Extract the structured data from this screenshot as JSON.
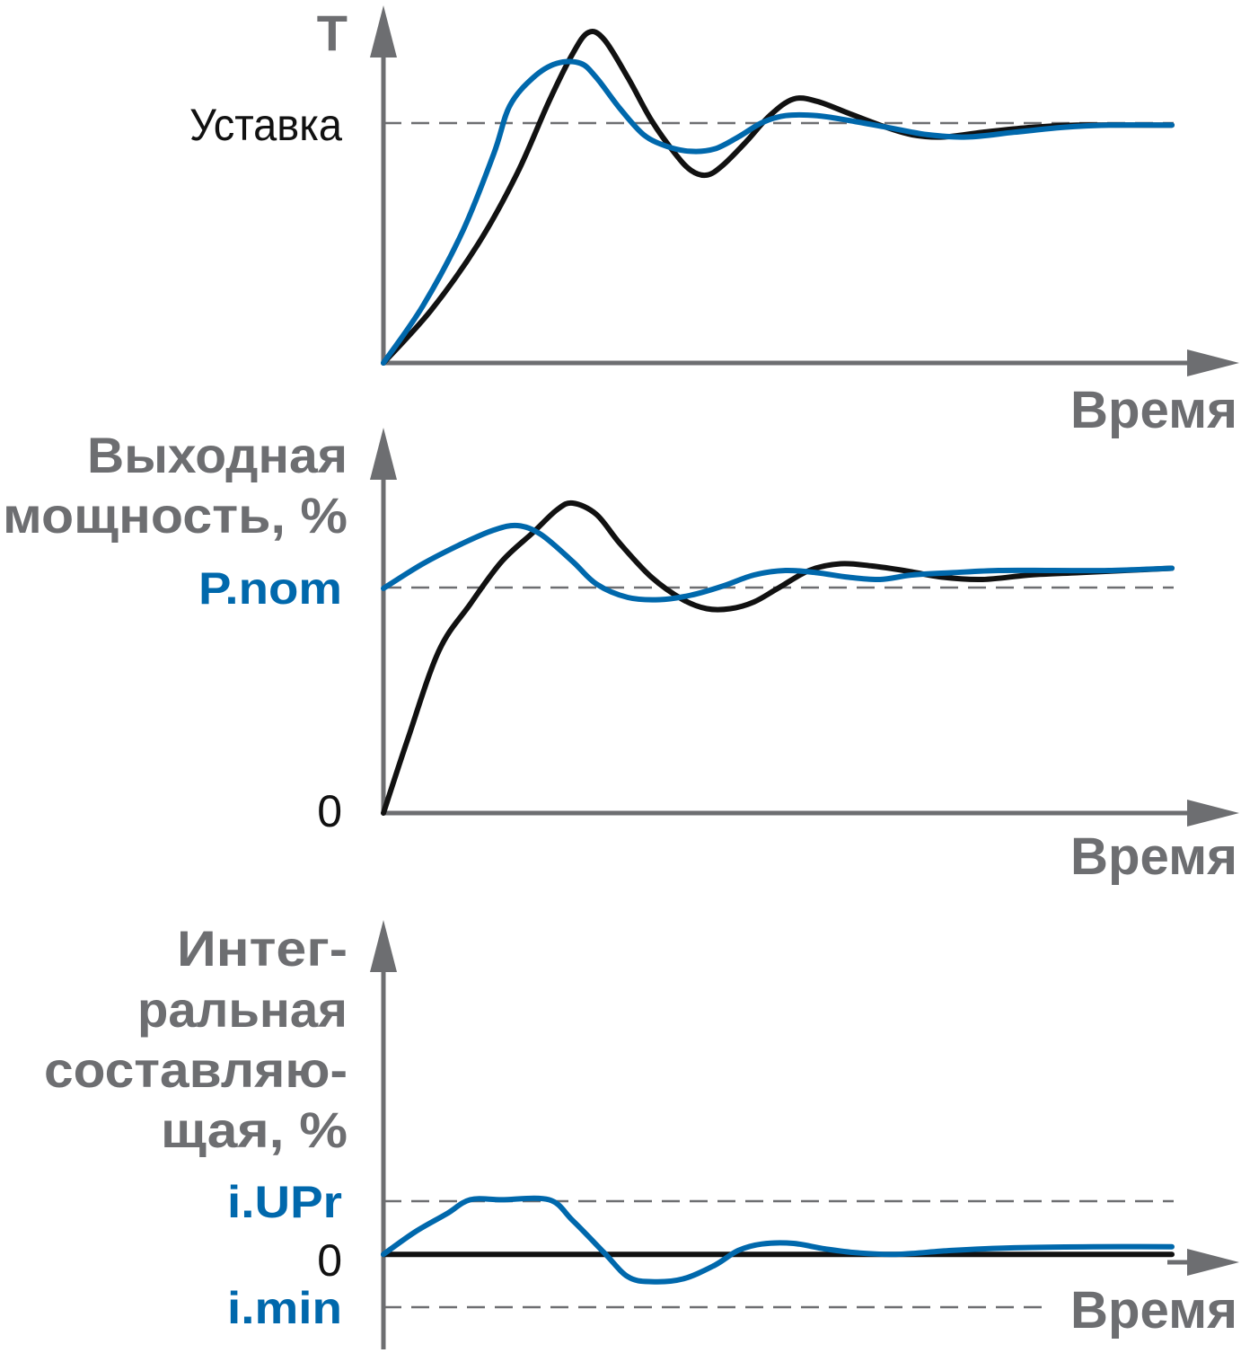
{
  "colors": {
    "axis": "#6d6e71",
    "series_black": "#111111",
    "series_blue": "#0068ac"
  },
  "labels": {
    "panel1_y_axis": "T",
    "panel1_setpoint": "Уставка",
    "panel1_x_axis": "Время",
    "panel2_y_axis_line1": "Выходная",
    "panel2_y_axis_line2": "мощность, %",
    "panel2_pnom": "P.nom",
    "panel2_zero": "0",
    "panel2_x_axis": "Время",
    "panel3_y_axis_line1": "Интег-",
    "panel3_y_axis_line2": "ральная",
    "panel3_y_axis_line3": "составляю-",
    "panel3_y_axis_line4": "щая, %",
    "panel3_iupr": "i.UPr",
    "panel3_zero": "0",
    "panel3_imin": "i.min",
    "panel3_x_axis": "Время"
  },
  "chart_data": [
    {
      "type": "line",
      "title": "",
      "ylabel": "T",
      "xlabel": "Время",
      "xlim": [
        0,
        100
      ],
      "ylim": [
        0,
        1.36
      ],
      "reference_lines": [
        {
          "label": "Уставка",
          "y": 1.0
        }
      ],
      "series": [
        {
          "color": "#111111",
          "points": [
            [
              0,
              0
            ],
            [
              6,
              0.22
            ],
            [
              12,
              0.5
            ],
            [
              17,
              0.8
            ],
            [
              21,
              1.1
            ],
            [
              24,
              1.3
            ],
            [
              26,
              1.39
            ],
            [
              28,
              1.36
            ],
            [
              31,
              1.2
            ],
            [
              34,
              1.02
            ],
            [
              37,
              0.88
            ],
            [
              39,
              0.81
            ],
            [
              41,
              0.79
            ],
            [
              43,
              0.83
            ],
            [
              46,
              0.93
            ],
            [
              49,
              1.04
            ],
            [
              52,
              1.11
            ],
            [
              55,
              1.1
            ],
            [
              59,
              1.05
            ],
            [
              63,
              1.0
            ],
            [
              67,
              0.96
            ],
            [
              71,
              0.95
            ],
            [
              76,
              0.97
            ],
            [
              82,
              0.99
            ],
            [
              88,
              1.0
            ],
            [
              100,
              1.0
            ]
          ]
        },
        {
          "color": "#0068ac",
          "points": [
            [
              0,
              0
            ],
            [
              5,
              0.24
            ],
            [
              10,
              0.55
            ],
            [
              14,
              0.88
            ],
            [
              16,
              1.08
            ],
            [
              19,
              1.2
            ],
            [
              22,
              1.26
            ],
            [
              25,
              1.26
            ],
            [
              27,
              1.2
            ],
            [
              30,
              1.07
            ],
            [
              33,
              0.96
            ],
            [
              36,
              0.91
            ],
            [
              39,
              0.89
            ],
            [
              42,
              0.9
            ],
            [
              45,
              0.95
            ],
            [
              48,
              1.01
            ],
            [
              51,
              1.04
            ],
            [
              55,
              1.04
            ],
            [
              59,
              1.02
            ],
            [
              64,
              0.99
            ],
            [
              69,
              0.96
            ],
            [
              74,
              0.95
            ],
            [
              80,
              0.97
            ],
            [
              86,
              0.99
            ],
            [
              92,
              1.0
            ],
            [
              100,
              1.0
            ]
          ]
        }
      ]
    },
    {
      "type": "line",
      "title": "",
      "ylabel": "Выходная мощность, %",
      "xlabel": "Время",
      "xlim": [
        0,
        100
      ],
      "ylim": [
        0,
        1.4
      ],
      "reference_lines": [
        {
          "label": "P.nom",
          "y": 1.0
        },
        {
          "label": "0",
          "y": 0
        }
      ],
      "series": [
        {
          "color": "#111111",
          "points": [
            [
              0,
              0
            ],
            [
              3,
              0.32
            ],
            [
              7,
              0.72
            ],
            [
              11,
              0.93
            ],
            [
              15,
              1.12
            ],
            [
              19,
              1.25
            ],
            [
              22,
              1.35
            ],
            [
              24,
              1.38
            ],
            [
              27,
              1.33
            ],
            [
              30,
              1.2
            ],
            [
              34,
              1.05
            ],
            [
              38,
              0.95
            ],
            [
              41,
              0.91
            ],
            [
              44,
              0.91
            ],
            [
              47,
              0.94
            ],
            [
              50,
              1.0
            ],
            [
              54,
              1.08
            ],
            [
              58,
              1.11
            ],
            [
              62,
              1.1
            ],
            [
              66,
              1.08
            ],
            [
              71,
              1.05
            ],
            [
              76,
              1.04
            ],
            [
              82,
              1.06
            ],
            [
              88,
              1.07
            ],
            [
              94,
              1.08
            ],
            [
              100,
              1.09
            ]
          ]
        },
        {
          "color": "#0068ac",
          "points": [
            [
              0,
              1.0
            ],
            [
              5,
              1.11
            ],
            [
              10,
              1.2
            ],
            [
              14,
              1.26
            ],
            [
              17,
              1.28
            ],
            [
              20,
              1.24
            ],
            [
              24,
              1.12
            ],
            [
              27,
              1.02
            ],
            [
              31,
              0.96
            ],
            [
              35,
              0.95
            ],
            [
              39,
              0.97
            ],
            [
              43,
              1.01
            ],
            [
              47,
              1.06
            ],
            [
              51,
              1.08
            ],
            [
              55,
              1.07
            ],
            [
              59,
              1.05
            ],
            [
              63,
              1.04
            ],
            [
              67,
              1.06
            ],
            [
              72,
              1.07
            ],
            [
              78,
              1.08
            ],
            [
              85,
              1.08
            ],
            [
              92,
              1.08
            ],
            [
              100,
              1.09
            ]
          ]
        }
      ]
    },
    {
      "type": "line",
      "title": "",
      "ylabel": "Интег- ральная составляю- щая, %",
      "xlabel": "Время",
      "xlim": [
        0,
        100
      ],
      "ylim": [
        -1.05,
        5.5
      ],
      "reference_lines": [
        {
          "label": "i.UPr",
          "y": 1.0
        },
        {
          "label": "0",
          "y": 0
        },
        {
          "label": "i.min",
          "y": -0.73
        }
      ],
      "series": [
        {
          "color": "#111111",
          "points": [
            [
              0,
              0
            ],
            [
              100,
              0
            ]
          ]
        },
        {
          "color": "#0068ac",
          "points": [
            [
              0,
              0
            ],
            [
              4,
              0.41
            ],
            [
              8,
              0.74
            ],
            [
              11,
              1.0
            ],
            [
              15,
              1.0
            ],
            [
              21,
              1.0
            ],
            [
              24,
              0.62
            ],
            [
              28,
              0.03
            ],
            [
              31,
              -0.41
            ],
            [
              34,
              -0.5
            ],
            [
              38,
              -0.45
            ],
            [
              42,
              -0.2
            ],
            [
              45,
              0.07
            ],
            [
              48,
              0.19
            ],
            [
              52,
              0.2
            ],
            [
              56,
              0.1
            ],
            [
              60,
              0.03
            ],
            [
              65,
              0.0
            ],
            [
              72,
              0.07
            ],
            [
              80,
              0.12
            ],
            [
              90,
              0.14
            ],
            [
              100,
              0.14
            ]
          ]
        }
      ]
    }
  ]
}
